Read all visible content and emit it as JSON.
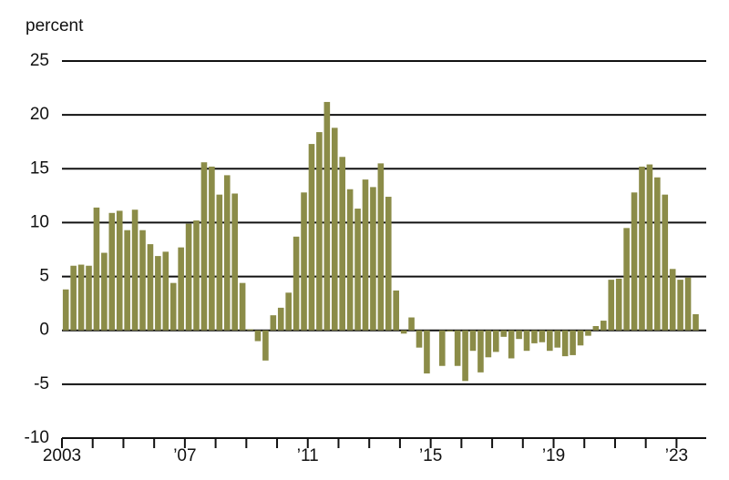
{
  "chart_data": {
    "type": "bar",
    "y_label": "percent",
    "categories": [
      "2003",
      null,
      null,
      null,
      null,
      null,
      null,
      null,
      null,
      null,
      null,
      null,
      null,
      null,
      null,
      null,
      "’07",
      null,
      null,
      null,
      null,
      null,
      null,
      null,
      null,
      null,
      null,
      null,
      null,
      null,
      null,
      null,
      "’11",
      null,
      null,
      null,
      null,
      null,
      null,
      null,
      null,
      null,
      null,
      null,
      null,
      null,
      null,
      null,
      "’15",
      null,
      null,
      null,
      null,
      null,
      null,
      null,
      null,
      null,
      null,
      null,
      null,
      null,
      null,
      null,
      "’19",
      null,
      null,
      null,
      null,
      null,
      null,
      null,
      null,
      null,
      null,
      null,
      null,
      null,
      null,
      null,
      "’23",
      null,
      null
    ],
    "values": [
      3.8,
      6.0,
      6.1,
      6.0,
      11.4,
      7.2,
      10.9,
      11.1,
      9.3,
      11.2,
      9.3,
      8.0,
      6.9,
      7.3,
      4.4,
      7.7,
      9.9,
      10.2,
      15.6,
      15.2,
      12.6,
      14.4,
      12.7,
      4.4,
      0.1,
      -1.0,
      -2.8,
      1.4,
      2.1,
      3.5,
      8.7,
      12.8,
      17.3,
      18.4,
      21.2,
      18.8,
      16.1,
      13.1,
      11.3,
      14.0,
      13.3,
      15.5,
      12.4,
      3.7,
      -0.3,
      1.2,
      -1.6,
      -4.0,
      0.0,
      -3.3,
      -0.1,
      -3.3,
      -4.7,
      -1.9,
      -3.9,
      -2.5,
      -2.0,
      -0.6,
      -2.6,
      -0.8,
      -1.9,
      -1.2,
      -1.1,
      -1.9,
      -1.6,
      -2.4,
      -2.3,
      -1.4,
      -0.5,
      0.4,
      0.9,
      4.7,
      4.8,
      9.5,
      12.8,
      15.2,
      15.4,
      14.2,
      12.6,
      5.7,
      4.7,
      4.9,
      1.5
    ],
    "color": "#8b8c48",
    "ylim": [
      -10,
      25
    ],
    "yticks": [
      -10,
      -5,
      0,
      5,
      10,
      15,
      20,
      25
    ],
    "grid": true
  }
}
